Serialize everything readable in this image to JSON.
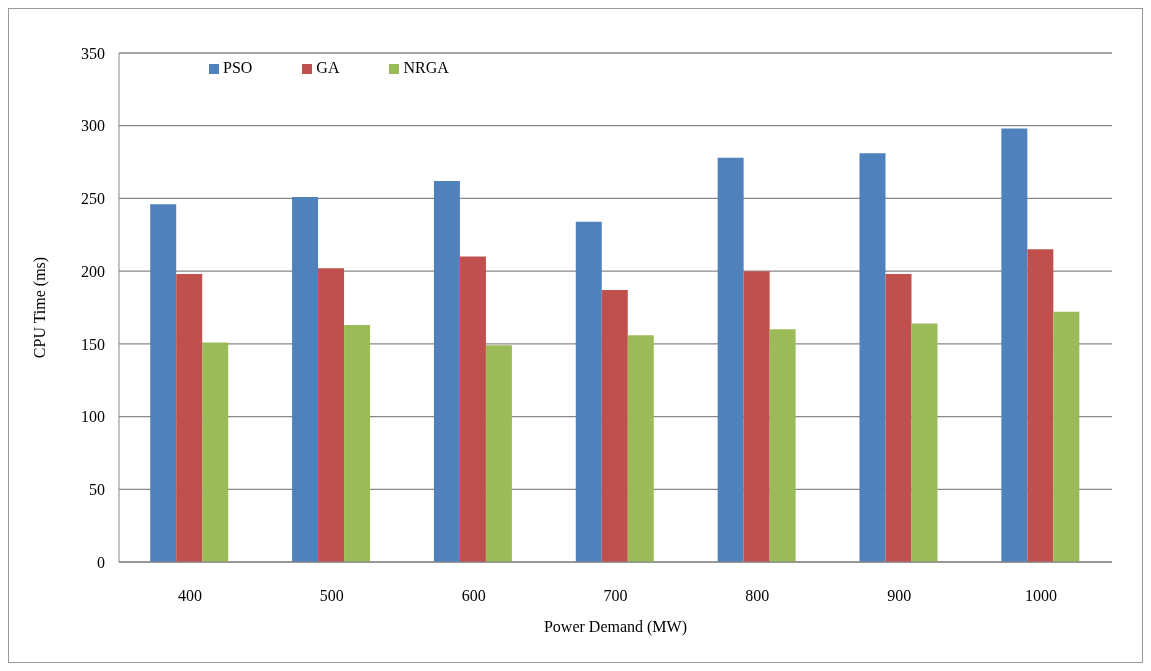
{
  "chart_data": {
    "type": "bar",
    "xlabel": "Power Demand (MW)",
    "ylabel": "CPU Time (ms)",
    "categories": [
      "400",
      "500",
      "600",
      "700",
      "800",
      "900",
      "1000"
    ],
    "series": [
      {
        "name": "PSO",
        "color": "#4f81bd",
        "values": [
          246,
          251,
          262,
          234,
          278,
          281,
          298
        ]
      },
      {
        "name": "GA",
        "color": "#c0504d",
        "values": [
          198,
          202,
          210,
          187,
          200,
          198,
          215
        ]
      },
      {
        "name": "NRGA",
        "color": "#9bbb59",
        "values": [
          151,
          163,
          149,
          156,
          160,
          164,
          172
        ]
      }
    ],
    "ylim": [
      0,
      350
    ],
    "yticks": [
      0,
      50,
      100,
      150,
      200,
      250,
      300,
      350
    ],
    "grid": "y",
    "legend": "top left"
  }
}
